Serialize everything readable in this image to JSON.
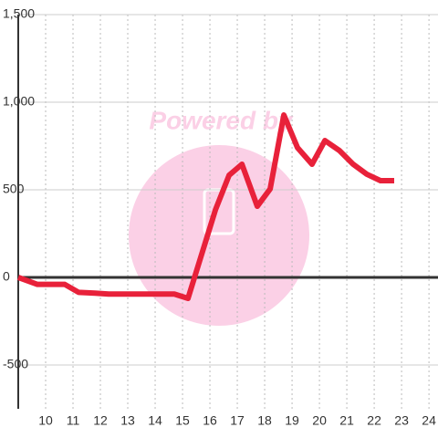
{
  "chart_data": {
    "type": "line",
    "watermark": "Powered by",
    "x": [
      9,
      9.7,
      10.7,
      11.2,
      11.8,
      12.3,
      14.7,
      15.2,
      16.2,
      16.7,
      17.17,
      17.73,
      18.2,
      18.7,
      19.2,
      19.73,
      20.2,
      20.73,
      21.23,
      21.73,
      22.23,
      22.73
    ],
    "series": [
      {
        "color": "#e8213a",
        "values": [
          0,
          -40,
          -40,
          -85,
          -90,
          -95,
          -95,
          -120,
          385,
          583,
          646,
          406,
          505,
          927,
          740,
          646,
          781,
          724,
          646,
          589,
          552,
          552
        ]
      }
    ],
    "xlim": [
      9,
      24.33
    ],
    "xticks": [
      10,
      11,
      12,
      13,
      14,
      15,
      16,
      17,
      18,
      19,
      20,
      21,
      22,
      23,
      24
    ],
    "ylim": [
      -750,
      1500
    ],
    "yticks": [
      -500,
      0,
      {
        "value": 500,
        "label": "500"
      },
      {
        "value": 1000,
        "label": "1,000"
      },
      {
        "value": 1500,
        "label": "1,500"
      }
    ],
    "grid": true
  }
}
